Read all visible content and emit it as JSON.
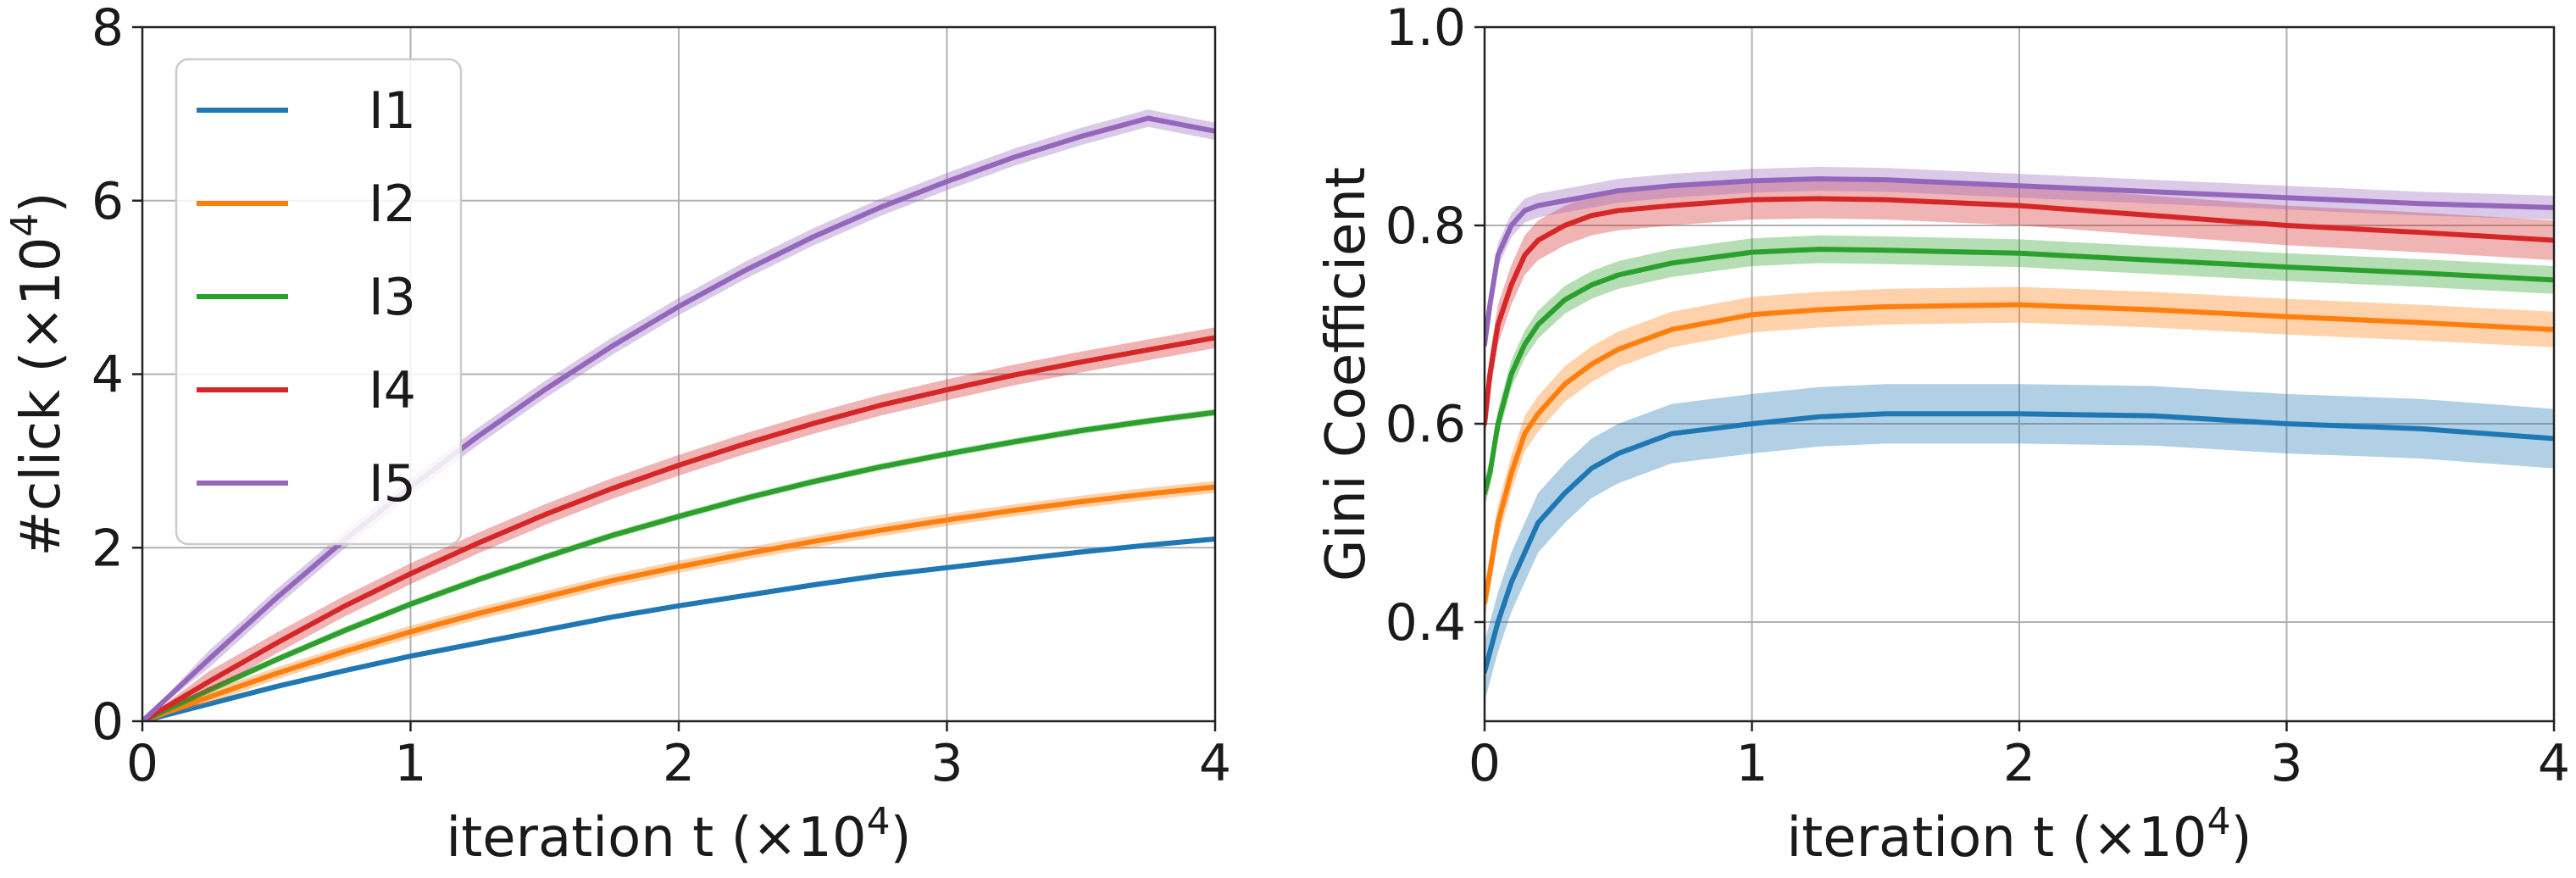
{
  "chart_data": [
    {
      "type": "line",
      "title": "",
      "xlabel": "iteration t (×10",
      "xlabel_sup": "4",
      "xlabel_end": ")",
      "ylabel": "#click (×10",
      "ylabel_sup": "4",
      "ylabel_end": ")",
      "xlim": [
        0,
        4
      ],
      "ylim": [
        0,
        8
      ],
      "xticks": [
        0,
        1,
        2,
        3,
        4
      ],
      "yticks": [
        0,
        2,
        4,
        6,
        8
      ],
      "xtick_labels": [
        "0",
        "1",
        "2",
        "3",
        "4"
      ],
      "ytick_labels": [
        "0",
        "2",
        "4",
        "6",
        "8"
      ],
      "grid": true,
      "legend": "top-left",
      "x": [
        0,
        0.25,
        0.5,
        0.75,
        1,
        1.25,
        1.5,
        1.75,
        2,
        2.25,
        2.5,
        2.75,
        3,
        3.25,
        3.5,
        3.75,
        4
      ],
      "series": [
        {
          "name": "I1",
          "color": "#1f77b4",
          "band": 0.03,
          "values": [
            0,
            0.2,
            0.4,
            0.58,
            0.75,
            0.9,
            1.05,
            1.2,
            1.33,
            1.45,
            1.57,
            1.68,
            1.77,
            1.86,
            1.95,
            2.03,
            2.1
          ]
        },
        {
          "name": "I2",
          "color": "#ff7f0e",
          "band": 0.07,
          "values": [
            0,
            0.28,
            0.55,
            0.8,
            1.03,
            1.24,
            1.43,
            1.62,
            1.78,
            1.93,
            2.07,
            2.2,
            2.32,
            2.43,
            2.53,
            2.62,
            2.7
          ]
        },
        {
          "name": "I3",
          "color": "#2ca02c",
          "band": 0.04,
          "values": [
            0,
            0.36,
            0.71,
            1.04,
            1.35,
            1.63,
            1.89,
            2.14,
            2.36,
            2.57,
            2.76,
            2.93,
            3.08,
            3.22,
            3.35,
            3.46,
            3.56
          ]
        },
        {
          "name": "I4",
          "color": "#d62728",
          "band": 0.12,
          "values": [
            0,
            0.46,
            0.9,
            1.32,
            1.7,
            2.05,
            2.38,
            2.68,
            2.95,
            3.2,
            3.43,
            3.64,
            3.82,
            3.99,
            4.14,
            4.28,
            4.42
          ]
        },
        {
          "name": "I5",
          "color": "#9467bd",
          "band": 0.1,
          "values": [
            0,
            0.72,
            1.42,
            2.08,
            2.7,
            3.28,
            3.82,
            4.32,
            4.78,
            5.2,
            5.58,
            5.92,
            6.22,
            6.5,
            6.74,
            6.95,
            6.8
          ]
        }
      ]
    },
    {
      "type": "line",
      "title": "",
      "xlabel": "iteration t (×10",
      "xlabel_sup": "4",
      "xlabel_end": ")",
      "ylabel": "Gini Coefficient",
      "xlim": [
        0,
        4
      ],
      "ylim": [
        0.3,
        1.0
      ],
      "xticks": [
        0,
        1,
        2,
        3,
        4
      ],
      "yticks": [
        0.4,
        0.6,
        0.8,
        1.0
      ],
      "xtick_labels": [
        "0",
        "1",
        "2",
        "3",
        "4"
      ],
      "ytick_labels": [
        "0.4",
        "0.6",
        "0.8",
        "1.0"
      ],
      "grid": true,
      "legend": "none",
      "x": [
        0,
        0.02,
        0.05,
        0.1,
        0.15,
        0.2,
        0.3,
        0.4,
        0.5,
        0.7,
        1,
        1.25,
        1.5,
        2,
        2.5,
        3,
        3.5,
        4
      ],
      "series": [
        {
          "name": "I1",
          "color": "#1f77b4",
          "band": 0.03,
          "values": [
            0.35,
            0.37,
            0.4,
            0.44,
            0.47,
            0.5,
            0.53,
            0.555,
            0.57,
            0.59,
            0.6,
            0.607,
            0.61,
            0.61,
            0.608,
            0.6,
            0.595,
            0.585
          ]
        },
        {
          "name": "I2",
          "color": "#ff7f0e",
          "band": 0.018,
          "values": [
            0.42,
            0.45,
            0.5,
            0.55,
            0.59,
            0.61,
            0.64,
            0.66,
            0.675,
            0.695,
            0.71,
            0.715,
            0.718,
            0.72,
            0.715,
            0.708,
            0.702,
            0.695
          ]
        },
        {
          "name": "I3",
          "color": "#2ca02c",
          "band": 0.014,
          "values": [
            0.53,
            0.55,
            0.6,
            0.65,
            0.68,
            0.7,
            0.725,
            0.74,
            0.75,
            0.762,
            0.773,
            0.776,
            0.775,
            0.772,
            0.765,
            0.758,
            0.752,
            0.745
          ]
        },
        {
          "name": "I4",
          "color": "#d62728",
          "band": 0.02,
          "values": [
            0.6,
            0.65,
            0.7,
            0.74,
            0.77,
            0.785,
            0.8,
            0.81,
            0.815,
            0.82,
            0.826,
            0.827,
            0.826,
            0.82,
            0.81,
            0.8,
            0.793,
            0.785
          ]
        },
        {
          "name": "I5",
          "color": "#9467bd",
          "band": 0.012,
          "values": [
            0.68,
            0.72,
            0.77,
            0.8,
            0.815,
            0.82,
            0.825,
            0.83,
            0.835,
            0.84,
            0.845,
            0.847,
            0.846,
            0.84,
            0.834,
            0.828,
            0.822,
            0.818
          ]
        }
      ]
    }
  ]
}
